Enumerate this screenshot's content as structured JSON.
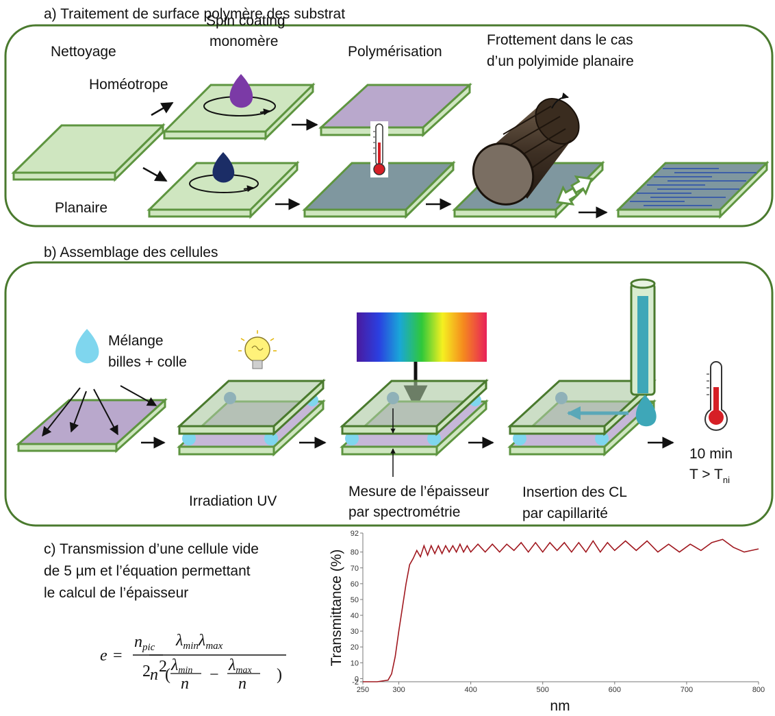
{
  "section_a": {
    "title": "a) Traitement de surface polymère des substrat",
    "step_nettoyage": "Nettoyage",
    "step_spin_line1": "Spin coating",
    "step_spin_line2": "monomère",
    "step_polymerisation": "Polymérisation",
    "step_frottement_line1": "Frottement dans le cas",
    "step_frottement_line2": "d’un polyimide planaire",
    "label_homeotrope": "Homéotrope",
    "label_planaire": "Planaire"
  },
  "section_b": {
    "title": "b) Assemblage des cellules",
    "melange_line1": "Mélange",
    "melange_line2": "billes + colle",
    "irradiation": "Irradiation UV",
    "mesure_line1": "Mesure de l’épaisseur",
    "mesure_line2": "par spectrométrie",
    "insertion_line1": "Insertion des CL",
    "insertion_line2": "par capillarité",
    "time": "10 min",
    "temp_prefix": "T > T",
    "temp_subscript": "ni"
  },
  "section_c": {
    "caption_line1": "c) Transmission d’une cellule vide",
    "caption_line2": "de 5 µm et l’équation permettant",
    "caption_line3": "le calcul de l’épaisseur",
    "equation": {
      "lhs": "e",
      "eq": "=",
      "npic_n": "n",
      "npic_sub": "pic",
      "two": "2",
      "lam": "λ",
      "min": "min",
      "max": "max",
      "n": "n",
      "sq": "2"
    }
  },
  "colors": {
    "frame": "#4a7a2e",
    "substrate_top": "#cfe6c0",
    "substrate_edge": "#5e9540",
    "purple_coat": "#b9a8cc",
    "blue_coat": "#7f979f",
    "drop_purple": "#7b3aa6",
    "drop_navy": "#1b2d66",
    "drop_light": "#7fd6ee",
    "curve": "#a0181f"
  },
  "chart_data": {
    "type": "line",
    "xlabel": "nm",
    "ylabel": "Transmittance (%)",
    "xlim": [
      250,
      800
    ],
    "ylim": [
      -2,
      92
    ],
    "x_ticks": [
      250,
      300,
      400,
      500,
      600,
      700,
      800
    ],
    "y_ticks": [
      -2,
      0,
      10,
      20,
      30,
      40,
      50,
      60,
      70,
      80,
      92
    ],
    "series": [
      {
        "x": [
          250,
          270,
          285,
          290,
          295,
          300,
          305,
          310,
          315,
          320,
          325,
          330,
          335,
          340,
          345,
          350,
          355,
          360,
          365,
          370,
          375,
          380,
          385,
          390,
          395,
          400,
          410,
          420,
          430,
          440,
          450,
          460,
          470,
          480,
          490,
          500,
          510,
          520,
          530,
          540,
          550,
          560,
          570,
          580,
          590,
          600,
          615,
          630,
          645,
          660,
          675,
          690,
          705,
          720,
          735,
          750,
          765,
          780,
          790,
          800
        ],
        "y": [
          -2,
          -2,
          -1,
          3,
          14,
          30,
          45,
          60,
          72,
          76,
          81,
          77,
          84,
          78,
          84,
          79,
          84,
          79,
          84,
          80,
          84,
          80,
          85,
          80,
          84,
          80,
          85,
          80,
          85,
          80,
          85,
          81,
          86,
          80,
          86,
          80,
          86,
          81,
          86,
          80,
          86,
          80,
          87,
          80,
          86,
          81,
          87,
          81,
          87,
          80,
          85,
          80,
          85,
          81,
          86,
          88,
          83,
          80,
          81,
          82
        ]
      }
    ]
  }
}
